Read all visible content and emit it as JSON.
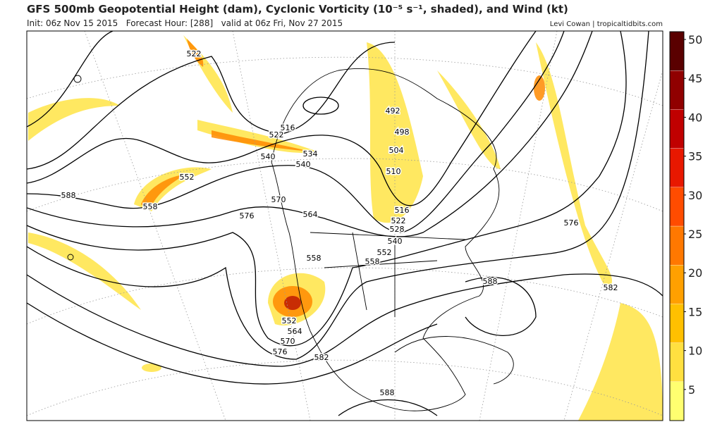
{
  "header": {
    "title": "GFS 500mb Geopotential Height (dam), Cyclonic Vorticity (10⁻⁵ s⁻¹, shaded), and Wind (kt)",
    "subtitle": "Init: 06z Nov 15 2015   Forecast Hour: [288]   valid at 06z Fri, Nov 27 2015",
    "credit": "Levi Cowan | tropicaltidbits.com"
  },
  "colorbar": {
    "range": [
      1,
      51
    ],
    "ticks": [
      5,
      10,
      15,
      20,
      25,
      30,
      35,
      40,
      45,
      50
    ],
    "colors": [
      "#ffff70",
      "#ffe040",
      "#ffc000",
      "#ffa000",
      "#ff7800",
      "#ff4c00",
      "#e81800",
      "#c00000",
      "#900000",
      "#5a0000"
    ]
  },
  "map": {
    "contour_labels": [
      "522",
      "516",
      "522",
      "540",
      "534",
      "540",
      "552",
      "558",
      "588",
      "576",
      "570",
      "564",
      "498",
      "492",
      "504",
      "510",
      "516",
      "522",
      "528",
      "540",
      "552",
      "558",
      "558",
      "552",
      "564",
      "570",
      "576",
      "582",
      "576",
      "582",
      "588",
      "588"
    ]
  }
}
